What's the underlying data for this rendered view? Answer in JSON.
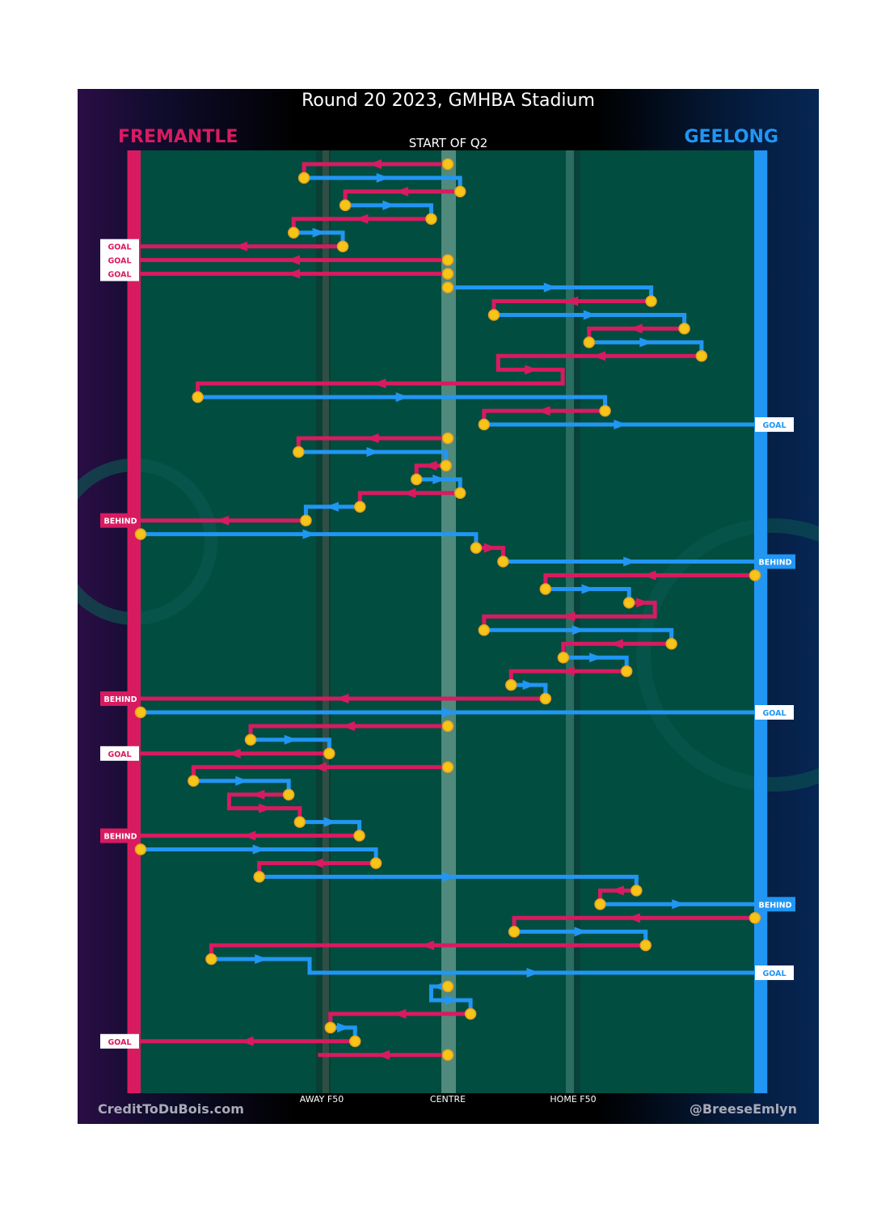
{
  "header": {
    "title": "Round 20 2023, GMHBA Stadium",
    "left_team": "FREMANTLE",
    "right_team": "GEELONG",
    "subtitle": "START OF Q2"
  },
  "footer": {
    "credit_left": "CreditToDuBois.com",
    "credit_right": "@BreeseEmlyn"
  },
  "colors": {
    "fremantle": "#d81b60",
    "geelong": "#2196f3",
    "field": "#014d40",
    "turnover": "#f5c518"
  },
  "chart_data": {
    "type": "line",
    "title": "Round 20 2023, GMHBA Stadium",
    "subtitle": "START OF Q2",
    "x_axis": {
      "range": [
        0,
        100
      ],
      "ticks": [
        {
          "value": 29,
          "label": "AWAY F50"
        },
        {
          "value": 50,
          "label": "CENTRE"
        },
        {
          "value": 71,
          "label": "HOME F50"
        }
      ]
    },
    "y_axis": {
      "range": [
        0,
        68
      ],
      "note": "chain step order, top to bottom"
    },
    "series": [
      {
        "name": "FREMANTLE"
      },
      {
        "name": "GEELONG"
      }
    ],
    "steps": [
      {
        "team": "F",
        "from": 50,
        "to": 26.6
      },
      {
        "team": "G",
        "from": 26.6,
        "to": 52
      },
      {
        "team": "F",
        "from": 52,
        "to": 33.3
      },
      {
        "team": "G",
        "from": 33.3,
        "to": 47.3
      },
      {
        "team": "F",
        "from": 47.3,
        "to": 24.9
      },
      {
        "team": "G",
        "from": 24.9,
        "to": 32.9
      },
      {
        "team": "F",
        "from": 32.9,
        "to": 0,
        "result": "GOAL"
      },
      {
        "team": "F",
        "from": 50,
        "to": 0,
        "result": "GOAL"
      },
      {
        "team": "F",
        "from": 50,
        "to": 0,
        "result": "GOAL"
      },
      {
        "team": "G",
        "from": 50,
        "to": 83.1
      },
      {
        "team": "F",
        "from": 83.1,
        "to": 57.5
      },
      {
        "team": "G",
        "from": 57.5,
        "to": 88.5
      },
      {
        "team": "F",
        "from": 88.5,
        "to": 73
      },
      {
        "team": "G",
        "from": 73,
        "to": 91.3
      },
      {
        "team": "F",
        "from": 91.3,
        "to": 58.2
      },
      {
        "team": "F",
        "from": 58.2,
        "to": 68.7
      },
      {
        "team": "F",
        "from": 68.7,
        "to": 9.3
      },
      {
        "team": "G",
        "from": 9.3,
        "to": 75.6
      },
      {
        "team": "F",
        "from": 75.6,
        "to": 55.9
      },
      {
        "team": "G",
        "from": 55.9,
        "to": 100,
        "result": "GOAL"
      },
      {
        "team": "F",
        "from": 50,
        "to": 25.7
      },
      {
        "team": "G",
        "from": 25.7,
        "to": 49.7
      },
      {
        "team": "F",
        "from": 49.7,
        "to": 44.9
      },
      {
        "team": "G",
        "from": 44.9,
        "to": 52
      },
      {
        "team": "F",
        "from": 52,
        "to": 35.7
      },
      {
        "team": "G",
        "from": 35.7,
        "to": 26.9
      },
      {
        "team": "F",
        "from": 26.9,
        "to": 0,
        "result": "BEHIND"
      },
      {
        "team": "G",
        "from": 0,
        "to": 54.6
      },
      {
        "team": "F",
        "from": 54.6,
        "to": 59
      },
      {
        "team": "G",
        "from": 59,
        "to": 100,
        "result": "BEHIND"
      },
      {
        "team": "F",
        "from": 100,
        "to": 65.9
      },
      {
        "team": "G",
        "from": 65.9,
        "to": 79.5
      },
      {
        "team": "F",
        "from": 79.5,
        "to": 83.7
      },
      {
        "team": "F",
        "from": 83.7,
        "to": 55.9
      },
      {
        "team": "G",
        "from": 55.9,
        "to": 86.4
      },
      {
        "team": "F",
        "from": 86.4,
        "to": 68.8
      },
      {
        "team": "G",
        "from": 68.8,
        "to": 79.1
      },
      {
        "team": "F",
        "from": 79.1,
        "to": 60.3
      },
      {
        "team": "G",
        "from": 60.3,
        "to": 65.9
      },
      {
        "team": "F",
        "from": 65.9,
        "to": 0,
        "result": "BEHIND"
      },
      {
        "team": "G",
        "from": 0,
        "to": 100,
        "result": "GOAL"
      },
      {
        "team": "F",
        "from": 50,
        "to": 17.9
      },
      {
        "team": "G",
        "from": 17.9,
        "to": 30.7
      },
      {
        "team": "F",
        "from": 30.7,
        "to": 0,
        "result": "GOAL"
      },
      {
        "team": "F",
        "from": 50,
        "to": 8.6
      },
      {
        "team": "G",
        "from": 8.6,
        "to": 24.1
      },
      {
        "team": "F",
        "from": 24.1,
        "to": 14.4
      },
      {
        "team": "F",
        "from": 14.4,
        "to": 25.9
      },
      {
        "team": "G",
        "from": 25.9,
        "to": 35.6
      },
      {
        "team": "F",
        "from": 35.6,
        "to": 0,
        "result": "BEHIND"
      },
      {
        "team": "G",
        "from": 0,
        "to": 38.3
      },
      {
        "team": "F",
        "from": 38.3,
        "to": 19.3
      },
      {
        "team": "G",
        "from": 19.3,
        "to": 80.7
      },
      {
        "team": "F",
        "from": 80.7,
        "to": 74.8
      },
      {
        "team": "G",
        "from": 74.8,
        "to": 100,
        "result": "BEHIND"
      },
      {
        "team": "F",
        "from": 100,
        "to": 60.8
      },
      {
        "team": "G",
        "from": 60.8,
        "to": 82.2
      },
      {
        "team": "F",
        "from": 82.2,
        "to": 11.5
      },
      {
        "team": "G",
        "from": 11.5,
        "to": 27.5
      },
      {
        "team": "G",
        "from": 27.5,
        "to": 100,
        "result": "GOAL"
      },
      {
        "team": "G",
        "from": 50,
        "to": 47.3
      },
      {
        "team": "G",
        "from": 47.3,
        "to": 53.7
      },
      {
        "team": "F",
        "from": 53.7,
        "to": 30.9
      },
      {
        "team": "G",
        "from": 30.9,
        "to": 34.9
      },
      {
        "team": "F",
        "from": 34.9,
        "to": 0,
        "result": "GOAL"
      },
      {
        "team": "F",
        "from": 50,
        "to": 29.2
      }
    ]
  }
}
